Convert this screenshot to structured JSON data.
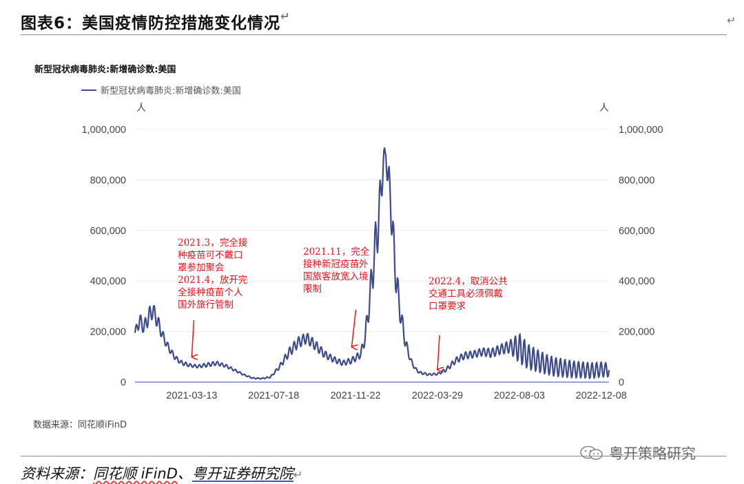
{
  "figure": {
    "title": "图表6：美国疫情防控措施变化情况",
    "return_mark": "↵"
  },
  "chart_heading": "新型冠状病毒肺炎:新增确诊数:美国",
  "chart_source": "数据来源：同花顺iFinD",
  "watermark": "粤开策略研究",
  "outer_source": {
    "prefix": "资料来源：",
    "part1": "同花顺 iFinD",
    "sep": "、",
    "part2": "粤开证券研究院"
  },
  "chart_data": {
    "type": "line",
    "title": "新型冠状病毒肺炎:新增确诊数:美国",
    "series": [
      {
        "name": "新型冠状病毒肺炎:新增确诊数:美国",
        "color": "#3d4a8a",
        "x": [
          "2020-12-15",
          "2020-12-22",
          "2020-12-29",
          "2021-01-05",
          "2021-01-12",
          "2021-01-19",
          "2021-01-26",
          "2021-02-02",
          "2021-02-09",
          "2021-02-16",
          "2021-02-23",
          "2021-03-02",
          "2021-03-13",
          "2021-03-23",
          "2021-04-06",
          "2021-04-20",
          "2021-05-04",
          "2021-05-18",
          "2021-06-01",
          "2021-06-15",
          "2021-06-29",
          "2021-07-13",
          "2021-07-27",
          "2021-08-10",
          "2021-08-24",
          "2021-09-07",
          "2021-09-21",
          "2021-10-05",
          "2021-10-19",
          "2021-11-02",
          "2021-11-16",
          "2021-11-30",
          "2021-12-07",
          "2021-12-14",
          "2021-12-21",
          "2021-12-28",
          "2022-01-04",
          "2022-01-08",
          "2022-01-11",
          "2022-01-15",
          "2022-01-18",
          "2022-01-25",
          "2022-02-01",
          "2022-02-08",
          "2022-02-15",
          "2022-02-22",
          "2022-03-01",
          "2022-03-15",
          "2022-03-29",
          "2022-04-12",
          "2022-04-26",
          "2022-05-10",
          "2022-05-24",
          "2022-06-07",
          "2022-06-21",
          "2022-07-05",
          "2022-07-19",
          "2022-08-03",
          "2022-08-17",
          "2022-08-31",
          "2022-09-14",
          "2022-09-28",
          "2022-10-12",
          "2022-10-26",
          "2022-11-09",
          "2022-11-23",
          "2022-12-08",
          "2022-12-20"
        ],
        "values": [
          195000,
          245000,
          215000,
          260000,
          285000,
          240000,
          190000,
          150000,
          120000,
          95000,
          80000,
          72000,
          65000,
          62000,
          68000,
          75000,
          65000,
          48000,
          30000,
          16000,
          14000,
          20000,
          60000,
          115000,
          155000,
          175000,
          145000,
          110000,
          90000,
          75000,
          85000,
          110000,
          180000,
          330000,
          500000,
          650000,
          870000,
          905000,
          800000,
          760000,
          600000,
          380000,
          250000,
          150000,
          90000,
          55000,
          38000,
          30000,
          32000,
          50000,
          85000,
          105000,
          110000,
          120000,
          115000,
          130000,
          140000,
          135000,
          100000,
          85000,
          70000,
          60000,
          55000,
          50000,
          48000,
          45000,
          50000,
          48000
        ],
        "amplitude": [
          15000,
          30000,
          25000,
          35000,
          30000,
          30000,
          20000,
          15000,
          12000,
          10000,
          8000,
          8000,
          6000,
          6000,
          8000,
          8000,
          6000,
          5000,
          3000,
          2000,
          2000,
          3000,
          8000,
          18000,
          22000,
          22000,
          20000,
          15000,
          12000,
          10000,
          12000,
          15000,
          30000,
          60000,
          90000,
          100000,
          60000,
          20000,
          60000,
          90000,
          90000,
          70000,
          40000,
          25000,
          10000,
          6000,
          5000,
          4000,
          4000,
          8000,
          12000,
          14000,
          14000,
          16000,
          18000,
          20000,
          25000,
          60000,
          50000,
          45000,
          40000,
          38000,
          36000,
          34000,
          32000,
          32000,
          30000,
          28000
        ]
      }
    ],
    "x_ticks": [
      "2021-03-13",
      "2021-07-18",
      "2021-11-22",
      "2022-03-29",
      "2022-08-03",
      "2022-12-08"
    ],
    "y_ticks": [
      "0",
      "200,000",
      "400,000",
      "600,000",
      "800,000",
      "1,000,000"
    ],
    "ylim": [
      0,
      1000000
    ],
    "y_unit": "人",
    "y2_unit": "人",
    "grid": true,
    "legend": "top-left",
    "annotations": [
      {
        "text": "2021.3，完全接\n种疫苗可不戴口\n罩参加聚会\n2021.4，放开完\n全接种疫苗个人\n国外旅行管制",
        "arrow_date": "2021-03-13",
        "arrow_value": 100000
      },
      {
        "text": "2021.11，完全\n接种新冠疫苗外\n国旅客放宽入境\n限制",
        "arrow_date": "2021-11-16",
        "arrow_value": 140000
      },
      {
        "text": "2022.4，取消公共\n交通工具必须佩戴\n口罩要求",
        "arrow_date": "2022-03-29",
        "arrow_value": 50000
      }
    ]
  }
}
